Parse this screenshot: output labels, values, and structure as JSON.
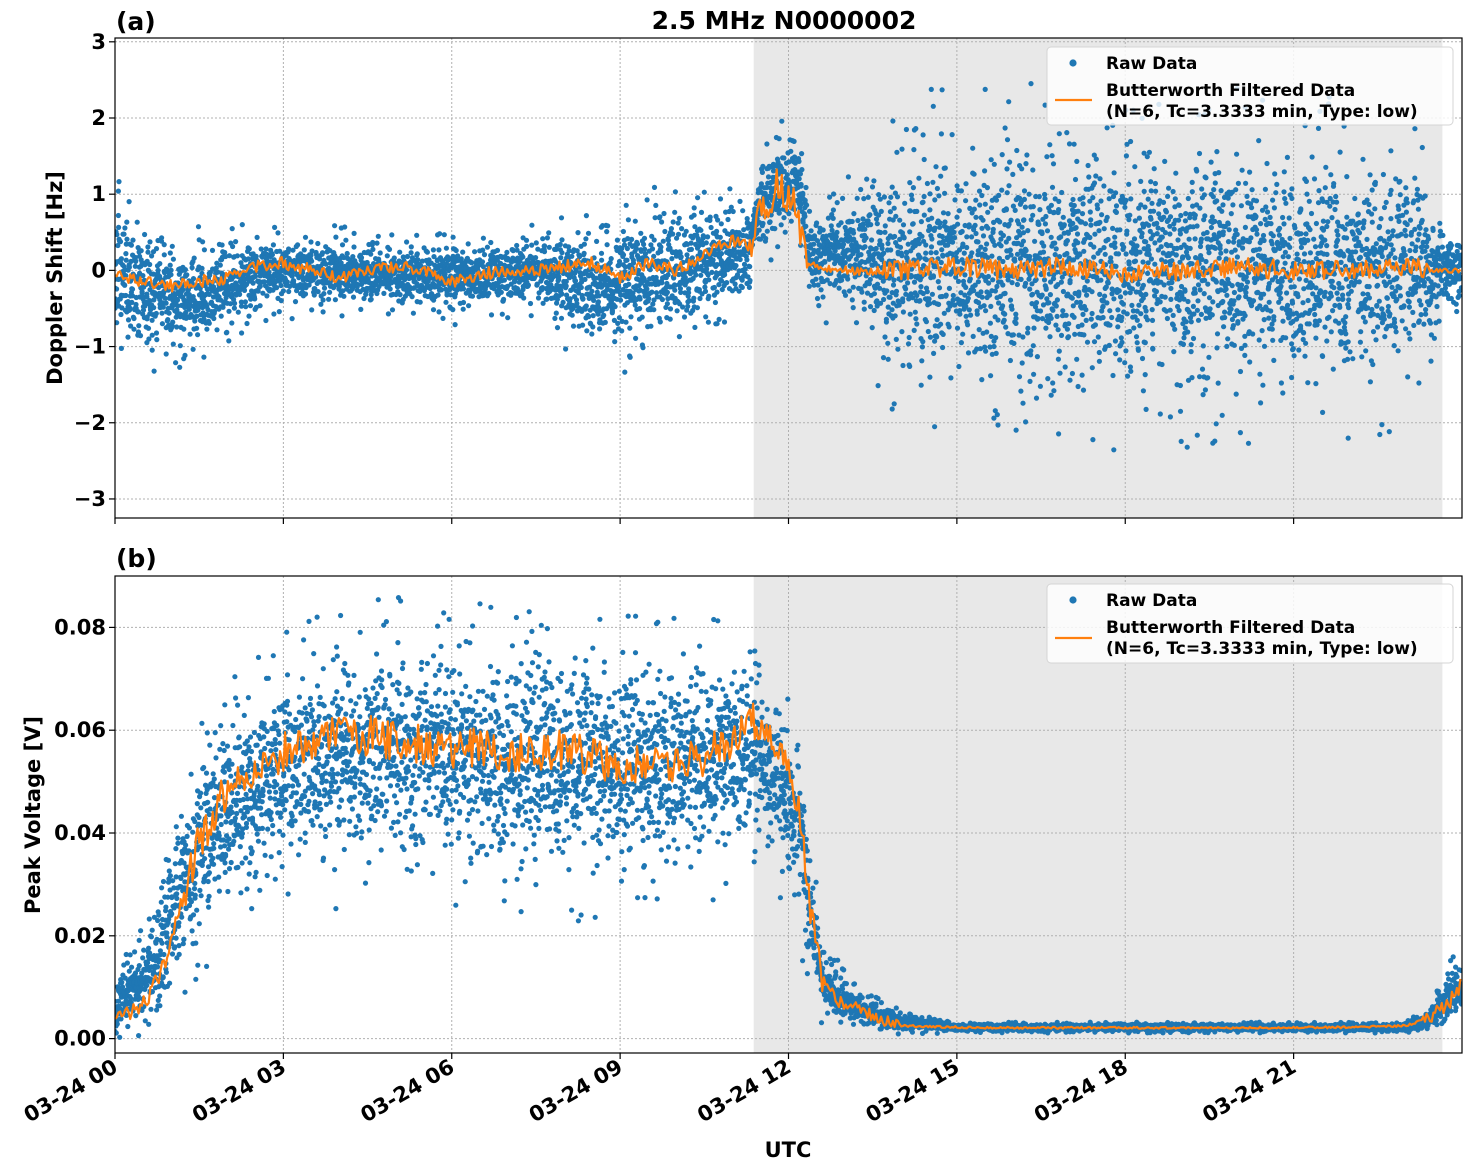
{
  "title": "2.5 MHz N0000002",
  "colors": {
    "raw": "#1f77b4",
    "filtered": "#ff7f0e",
    "shade": "#e8e8e8",
    "grid": "#b0b0b0"
  },
  "shared_x": {
    "label": "UTC",
    "ticks": [
      {
        "hour": 0,
        "label": "03-24 00"
      },
      {
        "hour": 3,
        "label": "03-24 03"
      },
      {
        "hour": 6,
        "label": "03-24 06"
      },
      {
        "hour": 9,
        "label": "03-24 09"
      },
      {
        "hour": 12,
        "label": "03-24 12"
      },
      {
        "hour": 15,
        "label": "03-24 15"
      },
      {
        "hour": 18,
        "label": "03-24 18"
      },
      {
        "hour": 21,
        "label": "03-24 21"
      }
    ]
  },
  "chart_data": [
    {
      "panel": "(a)",
      "type": "scatter",
      "title": "2.5 MHz N0000002",
      "xlabel": "",
      "ylabel": "Doppler Shift [Hz]",
      "xlim": [
        0,
        24
      ],
      "ylim": [
        -3.25,
        3.05
      ],
      "yticks": [
        {
          "v": 3,
          "label": "3"
        },
        {
          "v": 2,
          "label": "2"
        },
        {
          "v": 1,
          "label": "1"
        },
        {
          "v": 0,
          "label": "0"
        },
        {
          "v": -1,
          "label": "−1"
        },
        {
          "v": -2,
          "label": "−2"
        },
        {
          "v": -3,
          "label": "−3"
        }
      ],
      "grid": true,
      "shaded_region": [
        11.38,
        23.65
      ],
      "legend": {
        "position": "top-right",
        "entries": [
          "Raw Data",
          "Butterworth Filtered Data",
          "(N=6, Tc=3.3333 min, Type: low)"
        ]
      },
      "series": [
        {
          "name": "Raw Data",
          "kind": "scatter",
          "envelope_x": [
            0,
            0.5,
            1.5,
            2.5,
            3.5,
            5,
            6,
            7.5,
            8.5,
            9.5,
            10.5,
            11.3,
            11.4,
            11.8,
            12.2,
            12.4,
            12.8,
            13.2,
            13.5,
            14,
            15,
            17,
            19,
            21,
            22.5,
            23.3,
            23.6,
            24
          ],
          "envelope_low": [
            -1.3,
            -1.2,
            -1.1,
            -0.6,
            -0.5,
            -0.5,
            -0.6,
            -0.5,
            -1.2,
            -1.1,
            -0.7,
            -0.4,
            0.2,
            0.3,
            0.4,
            -0.5,
            -0.6,
            -0.6,
            -1.2,
            -1.6,
            -1.8,
            -1.9,
            -1.9,
            -1.8,
            -1.8,
            -1.5,
            -0.6,
            -0.7
          ],
          "envelope_high": [
            1.0,
            0.6,
            0.4,
            0.5,
            0.5,
            0.4,
            0.4,
            0.5,
            0.7,
            0.9,
            0.9,
            0.9,
            1.2,
            1.9,
            1.8,
            0.8,
            1.0,
            1.2,
            1.6,
            1.9,
            2.0,
            2.0,
            2.0,
            1.9,
            1.8,
            1.6,
            0.7,
            0.5
          ]
        },
        {
          "name": "Butterworth Filtered Data",
          "kind": "line",
          "x": [
            0,
            0.5,
            1,
            1.5,
            2,
            2.5,
            3,
            3.5,
            4,
            4.5,
            5,
            5.5,
            6,
            6.5,
            7,
            7.5,
            8,
            8.5,
            9,
            9.5,
            10,
            10.5,
            11,
            11.3,
            11.5,
            11.8,
            12.1,
            12.3,
            12.6,
            13,
            13.5,
            14,
            15,
            16,
            17,
            18,
            19,
            20,
            21,
            22,
            23,
            23.5,
            24
          ],
          "y": [
            -0.05,
            -0.15,
            -0.2,
            -0.15,
            -0.1,
            0.05,
            0.1,
            0.0,
            -0.1,
            0.0,
            0.05,
            0.0,
            -0.15,
            -0.05,
            0.0,
            0.0,
            0.05,
            0.1,
            -0.1,
            0.1,
            0.0,
            0.2,
            0.4,
            0.3,
            0.8,
            1.1,
            0.9,
            0.1,
            0.05,
            0.0,
            0.0,
            0.0,
            0.05,
            0.0,
            0.05,
            -0.05,
            0.0,
            0.05,
            0.0,
            0.0,
            0.05,
            0.0,
            0.0
          ],
          "noise": [
            [
              0,
              11.3,
              0.08
            ],
            [
              11.3,
              12.3,
              0.25
            ],
            [
              12.3,
              13.7,
              0.06
            ],
            [
              13.7,
              23.4,
              0.13
            ],
            [
              23.4,
              24,
              0.04
            ]
          ]
        }
      ]
    },
    {
      "panel": "(b)",
      "type": "scatter",
      "xlabel": "UTC",
      "ylabel": "Peak Voltage [V]",
      "xlim": [
        0,
        24
      ],
      "ylim": [
        -0.0028,
        0.09
      ],
      "yticks": [
        {
          "v": 0.08,
          "label": "0.08"
        },
        {
          "v": 0.06,
          "label": "0.06"
        },
        {
          "v": 0.04,
          "label": "0.04"
        },
        {
          "v": 0.02,
          "label": "0.02"
        },
        {
          "v": 0.0,
          "label": "0.00"
        }
      ],
      "grid": true,
      "shaded_region": [
        11.38,
        23.65
      ],
      "legend": {
        "position": "top-right",
        "entries": [
          "Raw Data",
          "Butterworth Filtered Data",
          "(N=6, Tc=3.3333 min, Type: low)"
        ]
      },
      "series": [
        {
          "name": "Raw Data",
          "kind": "scatter",
          "envelope_x": [
            0,
            0.2,
            0.5,
            0.8,
            1.0,
            1.3,
            1.6,
            2.0,
            2.5,
            3.0,
            4.0,
            5.0,
            6.0,
            7.0,
            8.0,
            9.0,
            10.0,
            11.0,
            11.5,
            11.9,
            12.2,
            12.4,
            12.6,
            13.0,
            13.5,
            14.0,
            15.0,
            18.0,
            21.0,
            23.0,
            23.4,
            23.7,
            24
          ],
          "envelope_low": [
            0.001,
            0.001,
            0.002,
            0.003,
            0.008,
            0.012,
            0.018,
            0.024,
            0.028,
            0.028,
            0.03,
            0.03,
            0.03,
            0.028,
            0.028,
            0.03,
            0.028,
            0.033,
            0.035,
            0.03,
            0.022,
            0.01,
            0.004,
            0.002,
            0.0015,
            0.0013,
            0.0013,
            0.0013,
            0.0013,
            0.0013,
            0.0015,
            0.002,
            0.003
          ],
          "envelope_high": [
            0.01,
            0.018,
            0.02,
            0.03,
            0.042,
            0.052,
            0.06,
            0.066,
            0.07,
            0.076,
            0.079,
            0.08,
            0.08,
            0.079,
            0.079,
            0.078,
            0.077,
            0.078,
            0.076,
            0.07,
            0.06,
            0.038,
            0.02,
            0.012,
            0.008,
            0.005,
            0.003,
            0.003,
            0.003,
            0.003,
            0.006,
            0.012,
            0.018
          ]
        },
        {
          "name": "Butterworth Filtered Data",
          "kind": "line",
          "x": [
            0,
            0.3,
            0.6,
            0.9,
            1.2,
            1.5,
            1.8,
            2.1,
            2.5,
            3.0,
            3.5,
            4.0,
            4.5,
            5.0,
            5.5,
            6.0,
            6.5,
            7.0,
            7.5,
            8.0,
            8.5,
            9.0,
            9.5,
            10.0,
            10.5,
            11.0,
            11.4,
            11.7,
            12.0,
            12.2,
            12.4,
            12.6,
            12.9,
            13.2,
            13.6,
            14.0,
            15.0,
            16.0,
            18.0,
            20.0,
            22.0,
            23.0,
            23.4,
            23.7,
            24
          ],
          "y": [
            0.004,
            0.005,
            0.008,
            0.015,
            0.028,
            0.038,
            0.045,
            0.05,
            0.052,
            0.056,
            0.058,
            0.06,
            0.059,
            0.058,
            0.057,
            0.056,
            0.057,
            0.055,
            0.056,
            0.056,
            0.055,
            0.053,
            0.054,
            0.054,
            0.055,
            0.058,
            0.062,
            0.058,
            0.052,
            0.044,
            0.024,
            0.012,
            0.007,
            0.006,
            0.004,
            0.0025,
            0.0022,
            0.0021,
            0.0021,
            0.0021,
            0.0022,
            0.0025,
            0.004,
            0.006,
            0.011
          ],
          "noise": [
            [
              0,
              1.2,
              0.0015
            ],
            [
              1.2,
              11.6,
              0.004
            ],
            [
              11.6,
              12.6,
              0.003
            ],
            [
              12.6,
              14,
              0.0012
            ],
            [
              14,
              23.3,
              0.0002
            ],
            [
              23.3,
              24,
              0.0015
            ]
          ]
        }
      ]
    }
  ]
}
